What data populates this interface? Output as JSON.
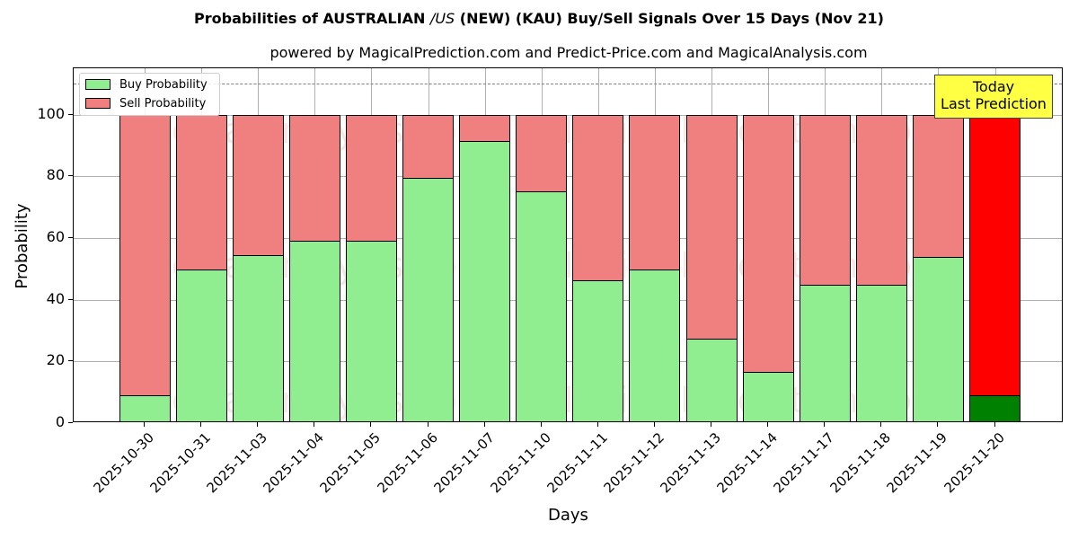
{
  "title_parts": {
    "pre": "Probabilities of AUSTRALIAN ",
    "italic": "/US",
    "post": " (NEW) (KAU) Buy/Sell Signals Over 15 Days (Nov 21)"
  },
  "subtitle": "powered by MagicalPrediction.com and Predict-Price.com and MagicalAnalysis.com",
  "legend": {
    "buy": "Buy Probability",
    "sell": "Sell Probability"
  },
  "annotation": {
    "line1": "Today",
    "line2": "Last Prediction"
  },
  "watermarks": [
    "MagicalAnalysis.com",
    "MagicalPrediction.com"
  ],
  "colors": {
    "buy": "#90ee90",
    "sell": "#f08080",
    "today_buy": "#008000",
    "today_sell": "#ff0000",
    "annotation_bg": "#ffff44"
  },
  "chart_data": {
    "type": "bar",
    "stacked": true,
    "title": "Probabilities of AUSTRALIAN /US (NEW) (KAU) Buy/Sell Signals Over 15 Days (Nov 21)",
    "subtitle": "powered by MagicalPrediction.com and Predict-Price.com and MagicalAnalysis.com",
    "xlabel": "Days",
    "ylabel": "Probability",
    "ylim": [
      0,
      115
    ],
    "yticks": [
      0,
      20,
      40,
      60,
      80,
      100
    ],
    "grid": true,
    "legend_position": "upper left",
    "reference_line": {
      "y": 110,
      "style": "dashed"
    },
    "categories": [
      "2025-10-30",
      "2025-10-31",
      "2025-11-03",
      "2025-11-04",
      "2025-11-05",
      "2025-11-06",
      "2025-11-07",
      "2025-11-10",
      "2025-11-11",
      "2025-11-12",
      "2025-11-13",
      "2025-11-14",
      "2025-11-17",
      "2025-11-18",
      "2025-11-19",
      "2025-11-20"
    ],
    "series": [
      {
        "name": "Buy Probability",
        "values": [
          9.0,
          49.8,
          54.4,
          59.0,
          59.0,
          79.4,
          91.3,
          75.2,
          46.2,
          49.7,
          27.4,
          16.6,
          44.9,
          44.9,
          53.8,
          9.0
        ]
      },
      {
        "name": "Sell Probability",
        "values": [
          91.0,
          50.2,
          45.6,
          41.0,
          41.0,
          20.6,
          8.7,
          24.8,
          53.8,
          50.3,
          72.6,
          83.4,
          55.1,
          55.1,
          46.2,
          91.0
        ]
      }
    ],
    "annotations": [
      {
        "text": "Today\nLast Prediction",
        "x": "2025-11-20"
      }
    ]
  }
}
